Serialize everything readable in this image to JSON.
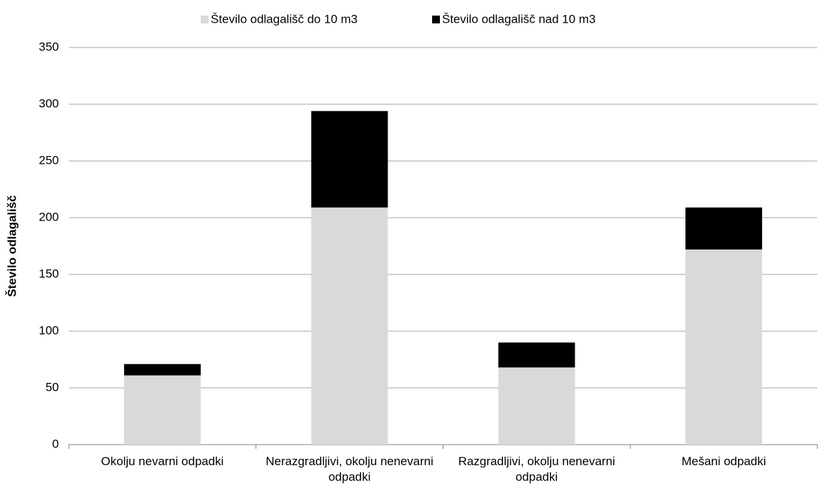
{
  "chart_data": {
    "type": "stacked_bar",
    "categories": [
      "Okolju nevarni odpadki",
      "Nerazgradljivi, okolju nenevarni odpadki",
      "Razgradljivi, okolju nenevarni odpadki",
      "Mešani odpadki"
    ],
    "series": [
      {
        "name": "Število odlagališč do 10 m3",
        "color": "#d9d9d9",
        "values": [
          61,
          209,
          68,
          172
        ]
      },
      {
        "name": "Število odlagališč nad 10 m3",
        "color": "#000000",
        "values": [
          10,
          85,
          22,
          37
        ]
      }
    ],
    "y_label": "Število odlagališč",
    "ylim": [
      0,
      350
    ],
    "yticks": [
      0,
      50,
      100,
      150,
      200,
      250,
      300,
      350
    ],
    "grid": true,
    "legend": "top"
  }
}
